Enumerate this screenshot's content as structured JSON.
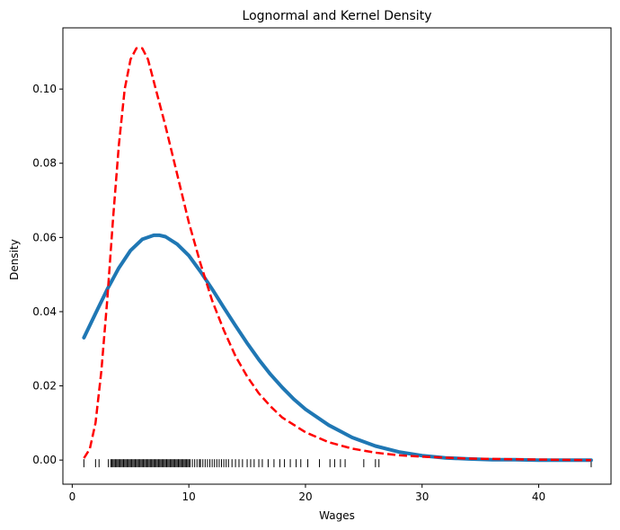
{
  "chart_data": {
    "type": "line",
    "title": "Lognormal and Kernel Density",
    "xlabel": "Wages",
    "ylabel": "Density",
    "xlim": [
      -0.8,
      46.2
    ],
    "ylim": [
      -0.0065,
      0.1165
    ],
    "xticks": [
      0,
      10,
      20,
      30,
      40
    ],
    "yticks": [
      0.0,
      0.02,
      0.04,
      0.06,
      0.08,
      0.1
    ],
    "ytick_labels": [
      "0.00",
      "0.02",
      "0.04",
      "0.06",
      "0.08",
      "0.10"
    ],
    "grid": false,
    "legend": "none",
    "series": [
      {
        "style": "solid",
        "color": "#1f77b4",
        "x": [
          1,
          2,
          3,
          4,
          5,
          6,
          7,
          7.5,
          8,
          9,
          10,
          11,
          12,
          13,
          14,
          15,
          16,
          17,
          18,
          19,
          20,
          22,
          24,
          26,
          28,
          30,
          32,
          34,
          36,
          38,
          40,
          42,
          44.5
        ],
        "y": [
          0.033,
          0.0395,
          0.046,
          0.0518,
          0.0565,
          0.0595,
          0.0606,
          0.0606,
          0.0602,
          0.0582,
          0.0551,
          0.0508,
          0.0461,
          0.0411,
          0.0362,
          0.0315,
          0.0271,
          0.0231,
          0.0196,
          0.0164,
          0.0137,
          0.0094,
          0.0061,
          0.0038,
          0.0022,
          0.0012,
          0.0006,
          0.0003,
          0.0001,
          0.0001,
          0.0,
          0.0,
          0.0
        ]
      },
      {
        "style": "dashed",
        "color": "#ff0000",
        "x": [
          1,
          1.5,
          2,
          2.5,
          3,
          3.5,
          4,
          4.5,
          5,
          5.5,
          6,
          6.5,
          7,
          7.5,
          8,
          9,
          10,
          11,
          12,
          13,
          14,
          15,
          16,
          17,
          18,
          20,
          22,
          24,
          26,
          28,
          30,
          34,
          38,
          44.5
        ],
        "y": [
          0.0005,
          0.003,
          0.01,
          0.024,
          0.043,
          0.065,
          0.085,
          0.1,
          0.108,
          0.111,
          0.111,
          0.108,
          0.102,
          0.096,
          0.09,
          0.077,
          0.064,
          0.053,
          0.043,
          0.035,
          0.028,
          0.0225,
          0.018,
          0.0145,
          0.0115,
          0.0075,
          0.0048,
          0.0031,
          0.002,
          0.0013,
          0.0009,
          0.0004,
          0.0002,
          0.0
        ]
      }
    ],
    "rug": {
      "y": 0,
      "color": "#000000",
      "values": [
        1.0,
        2.0,
        2.3,
        3.1,
        3.3,
        3.4,
        3.5,
        3.6,
        3.7,
        3.8,
        3.9,
        4.0,
        4.1,
        4.2,
        4.3,
        4.4,
        4.5,
        4.6,
        4.7,
        4.8,
        4.9,
        5.0,
        5.1,
        5.2,
        5.3,
        5.4,
        5.5,
        5.6,
        5.7,
        5.8,
        5.9,
        6.0,
        6.1,
        6.2,
        6.3,
        6.4,
        6.5,
        6.6,
        6.7,
        6.8,
        6.9,
        7.0,
        7.1,
        7.2,
        7.3,
        7.4,
        7.5,
        7.6,
        7.7,
        7.8,
        7.9,
        8.0,
        8.1,
        8.2,
        8.3,
        8.4,
        8.5,
        8.6,
        8.7,
        8.8,
        8.9,
        9.0,
        9.1,
        9.2,
        9.3,
        9.4,
        9.5,
        9.6,
        9.7,
        9.8,
        9.9,
        10.0,
        10.1,
        10.3,
        10.5,
        10.7,
        10.9,
        11.0,
        11.2,
        11.4,
        11.6,
        11.8,
        12.0,
        12.2,
        12.4,
        12.6,
        12.8,
        13.0,
        13.2,
        13.4,
        13.7,
        14.0,
        14.3,
        14.6,
        15.0,
        15.3,
        15.6,
        16.0,
        16.3,
        16.8,
        17.3,
        17.8,
        18.2,
        18.7,
        19.2,
        19.6,
        20.2,
        21.2,
        22.1,
        22.5,
        23.0,
        23.4,
        25.0,
        26.0,
        26.3,
        44.5
      ]
    }
  }
}
